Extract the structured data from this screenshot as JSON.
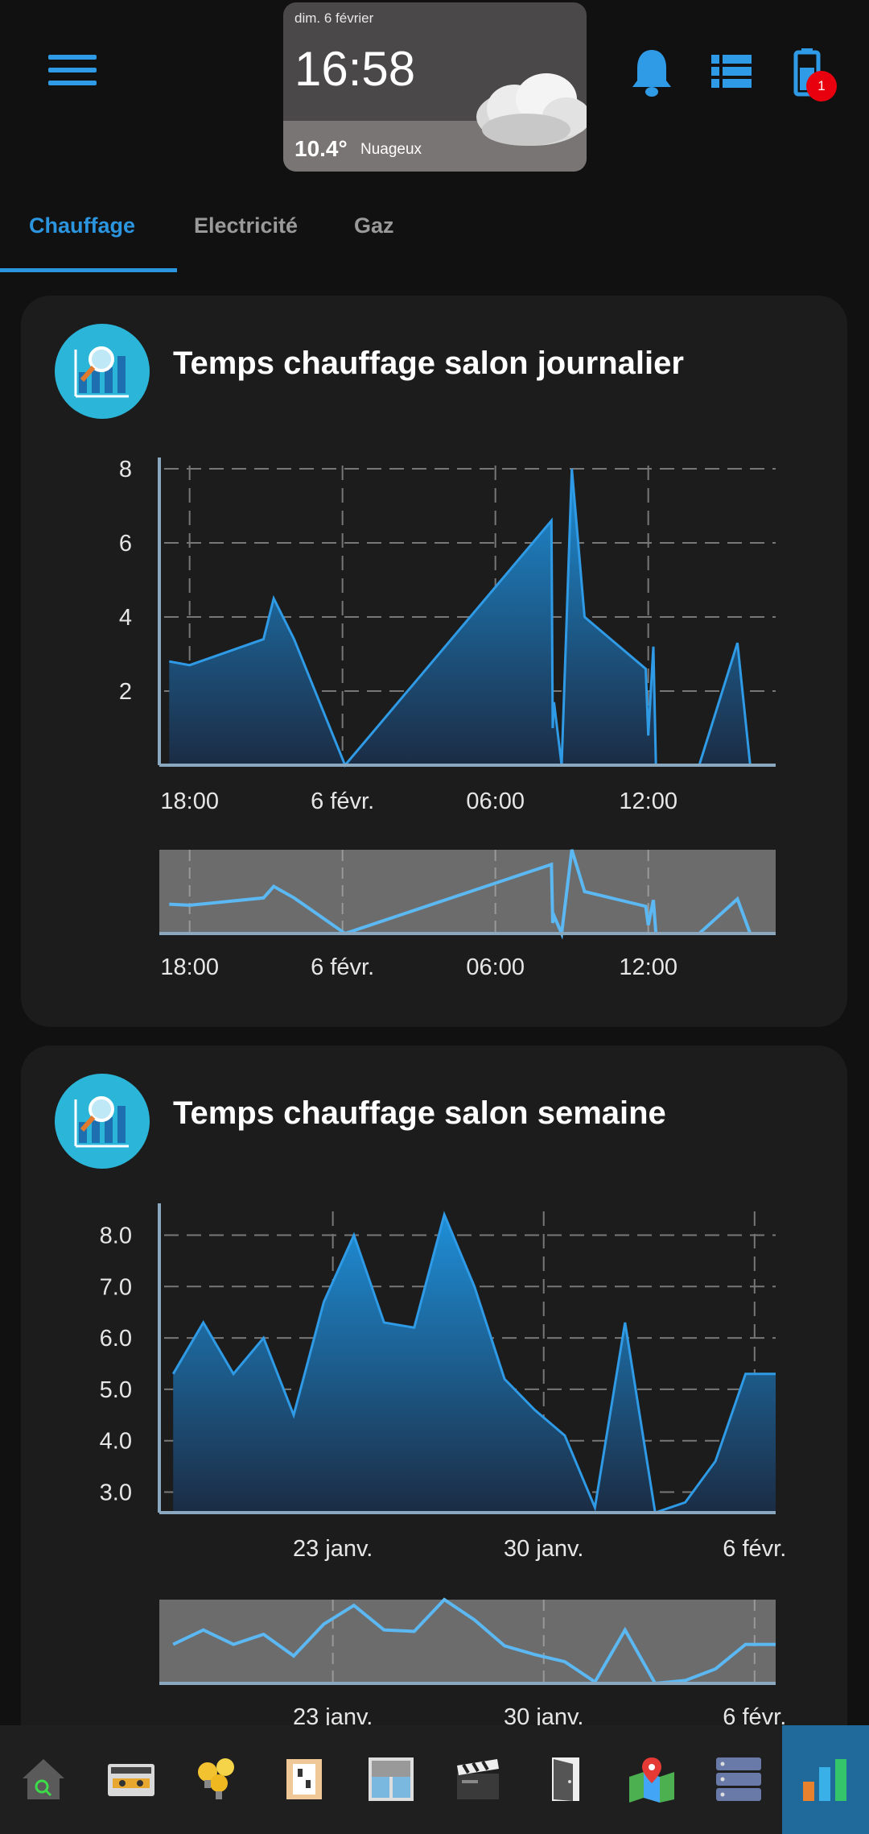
{
  "header": {
    "weather_date": "dim. 6 février",
    "weather_time": "16:58",
    "weather_temp": "10.4°",
    "weather_condition": "Nuageux",
    "notification_badge": "1",
    "accent_color": "#2f9be6"
  },
  "tabs": [
    {
      "label": "Chauffage",
      "active": true
    },
    {
      "label": "Electricité",
      "active": false
    },
    {
      "label": "Gaz",
      "active": false
    }
  ],
  "cards": [
    {
      "title": "Temps chauffage salon journalier"
    },
    {
      "title": "Temps chauffage salon semaine"
    }
  ],
  "nav_icons": [
    "home-search-icon",
    "radio-icon",
    "lightbulbs-icon",
    "switch-panel-icon",
    "window-shutter-icon",
    "clapperboard-icon",
    "door-icon",
    "map-icon",
    "server-icon",
    "bar-chart-icon"
  ],
  "chart_data": [
    {
      "type": "area",
      "title": "Temps chauffage salon journalier",
      "color": "#2f9be6",
      "x_tick_labels": [
        "18:00",
        "6 févr.",
        "06:00",
        "12:00"
      ],
      "x_ticks_hours": [
        18,
        24,
        30,
        36
      ],
      "xlim_hours": [
        17,
        41
      ],
      "y_ticks": [
        "8",
        "6",
        "4",
        "2"
      ],
      "y_tick_values": [
        8,
        6,
        4,
        2
      ],
      "ylim": [
        0,
        8
      ],
      "grid": true,
      "x_hours": [
        17.2,
        18.0,
        20.9,
        21.3,
        22.1,
        24.1,
        32.2,
        32.25,
        32.3,
        32.6,
        33.0,
        33.5,
        35.9,
        36.0,
        36.2,
        36.3,
        38.0,
        39.5,
        40.0
      ],
      "y": [
        2.8,
        2.7,
        3.4,
        4.5,
        3.4,
        0,
        6.6,
        1.0,
        1.7,
        0,
        8.0,
        4.0,
        2.6,
        0.8,
        3.2,
        0,
        0,
        3.3,
        0
      ]
    },
    {
      "type": "area",
      "title": "Temps chauffage salon semaine",
      "color": "#2f9be6",
      "x_tick_labels": [
        "23 janv.",
        "30 janv.",
        "6 févr."
      ],
      "x_tick_days": [
        23,
        30,
        37
      ],
      "xlim_days": [
        17.4,
        37.7
      ],
      "y_ticks": [
        "8.0",
        "7.0",
        "6.0",
        "5.0",
        "4.0",
        "3.0"
      ],
      "y_tick_values": [
        8,
        7,
        6,
        5,
        4,
        3
      ],
      "ylim": [
        2.6,
        8.4
      ],
      "grid": true,
      "x_days": [
        17.7,
        18.7,
        19.7,
        20.7,
        21.7,
        22.7,
        23.7,
        24.7,
        25.7,
        26.7,
        27.7,
        28.7,
        29.7,
        30.7,
        31.7,
        32.7,
        33.7,
        34.7,
        35.7,
        36.7,
        37.7
      ],
      "y": [
        5.3,
        6.3,
        5.3,
        6.0,
        4.5,
        6.7,
        8.0,
        6.3,
        6.2,
        8.4,
        7.0,
        5.2,
        4.6,
        4.1,
        2.7,
        6.3,
        2.6,
        2.8,
        3.6,
        5.3,
        5.3
      ]
    }
  ]
}
